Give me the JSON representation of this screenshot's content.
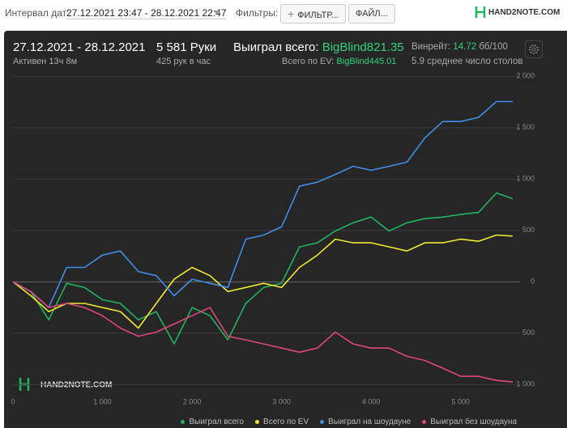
{
  "toolbar": {
    "interval_label": "Интервал дат:",
    "interval_value": "27.12.2021 23:47 - 28.12.2021 22:47",
    "filters_label": "Фильтры:",
    "filter_button": "ФИЛЬТР...",
    "file_button": "ФАЙЛ...",
    "logo": "HAND2NOTE.COM"
  },
  "stats": {
    "date_range": "27.12.2021 - 28.12.2021",
    "active": "Активен 13ч 8м",
    "hands": "5 581 Руки",
    "hands_per_hour": "425 рук в час",
    "won_label": "Выиграл всего:",
    "won_value": "BigBlind821.35",
    "ev_label": "Всего по EV:",
    "ev_value": "BigBlind445.01",
    "winrate_label": "Винрейт:",
    "winrate_value": "14.72",
    "winrate_unit": "бб/100",
    "tables": "5.9 среднее число столов"
  },
  "chart_data": {
    "type": "line",
    "watermark": "HAND2NOTE.COM",
    "x": [
      0,
      200,
      400,
      600,
      800,
      1000,
      1200,
      1400,
      1600,
      1800,
      2000,
      2200,
      2400,
      2600,
      2800,
      3000,
      3200,
      3400,
      3600,
      3800,
      4000,
      4200,
      4400,
      4600,
      4800,
      5000,
      5200,
      5400,
      5581
    ],
    "series": [
      {
        "name": "Выиграл всего",
        "color": "#22b35e",
        "values": [
          0,
          -95,
          -370,
          -15,
          -55,
          -175,
          -210,
          -370,
          -290,
          -605,
          -250,
          -330,
          -565,
          -210,
          -55,
          -15,
          340,
          380,
          495,
          575,
          630,
          495,
          575,
          615,
          630,
          655,
          675,
          865,
          810
        ]
      },
      {
        "name": "Всего по EV",
        "color": "#f0e832",
        "values": [
          0,
          -135,
          -290,
          -210,
          -210,
          -250,
          -290,
          -450,
          -210,
          25,
          140,
          60,
          -95,
          -55,
          -15,
          -55,
          140,
          260,
          415,
          380,
          380,
          340,
          300,
          380,
          380,
          415,
          395,
          455,
          445
        ]
      },
      {
        "name": "Выиграл на шоудауне",
        "color": "#3f8ee6",
        "values": [
          0,
          -95,
          -250,
          140,
          140,
          260,
          300,
          100,
          60,
          -135,
          25,
          -15,
          -55,
          415,
          455,
          535,
          930,
          970,
          1045,
          1125,
          1085,
          1125,
          1165,
          1400,
          1560,
          1560,
          1600,
          1755,
          1755
        ]
      },
      {
        "name": "Выиграл без шоудауна",
        "color": "#e0457b",
        "values": [
          0,
          -95,
          -250,
          -210,
          -250,
          -330,
          -450,
          -530,
          -490,
          -410,
          -330,
          -250,
          -530,
          -565,
          -605,
          -645,
          -685,
          -645,
          -490,
          -605,
          -645,
          -645,
          -725,
          -765,
          -840,
          -920,
          -920,
          -960,
          -975
        ]
      }
    ],
    "xlim": [
      0,
      5600
    ],
    "xticks": [
      0,
      {
        "value": 1000,
        "label": "1 000"
      },
      {
        "value": 2000,
        "label": "2 000"
      },
      {
        "value": 3000,
        "label": "3 000"
      },
      {
        "value": 4000,
        "label": "4 000"
      },
      {
        "value": 5000,
        "label": "5 000"
      }
    ],
    "ylim": [
      -1100,
      2050
    ],
    "yticks": [
      {
        "value": 2000,
        "label": "2 000"
      },
      {
        "value": 1500,
        "label": "1 500"
      },
      {
        "value": 1000,
        "label": "1 000"
      },
      {
        "value": 500,
        "label": "500"
      },
      0,
      {
        "value": -500,
        "label": "500"
      },
      {
        "value": -1000,
        "label": "1 000"
      }
    ],
    "grid": true
  }
}
